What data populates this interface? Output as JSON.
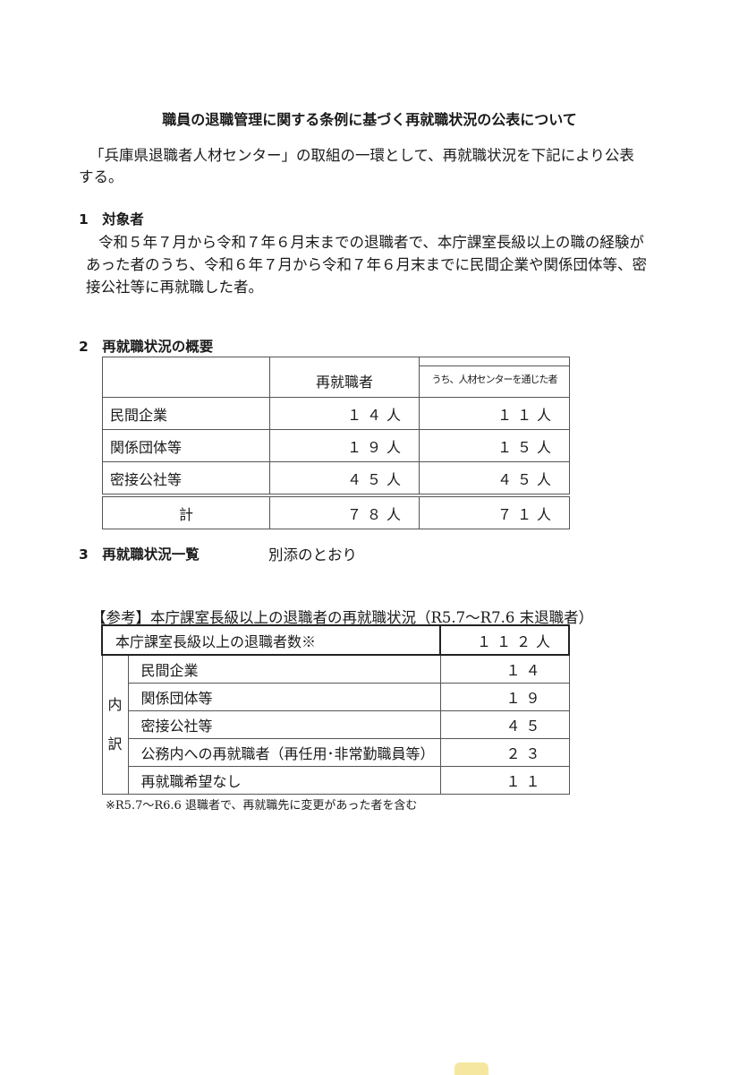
{
  "title": "職員の退職管理に関する条例に基づく再就職状況の公表について",
  "intro": [
    "「兵庫県退職者人材センター」の取組の一環として、再就職状況を下記により公表",
    "する。"
  ],
  "section1": {
    "heading": "1　対象者",
    "lines": [
      "令和５年７月から令和７年６月末までの退職者で、本庁課室長級以上の職の経験が",
      "あった者のうち、令和６年７月から令和７年６月末までに民間企業や関係団体等、密",
      "接公社等に再就職した者。"
    ]
  },
  "section2": {
    "heading": "2　再就職状況の概要",
    "table": {
      "headers": [
        "",
        "再就職者",
        "うち、人材センターを通じた者"
      ],
      "rows": [
        [
          "民間企業",
          "１４人",
          "１１人"
        ],
        [
          "関係団体等",
          "１９人",
          "１５人"
        ],
        [
          "密接公社等",
          "４５人",
          "４５人"
        ]
      ],
      "total": [
        "計",
        "７８人",
        "７１人"
      ]
    }
  },
  "section3": {
    "heading": "3　再就職状況一覧",
    "text": "別添のとおり"
  },
  "reference": {
    "title": "【参考】本庁課室長級以上の退職者の再就職状況（R5.7～R7.6 末退職者）",
    "total_label": "本庁課室長級以上の退職者数※",
    "total_value": "１１２人",
    "breakdown_label": [
      "内",
      "訳"
    ],
    "rows": [
      [
        "民間企業",
        "１４"
      ],
      [
        "関係団体等",
        "１９"
      ],
      [
        "密接公社等",
        "４５"
      ],
      [
        "公務内への再就職者（再任用･非常勤職員等）",
        "２３"
      ],
      [
        "再就職希望なし",
        "１１"
      ]
    ],
    "footnote": "※R5.7～R6.6 退職者で、再就職先に変更があった者を含む"
  }
}
